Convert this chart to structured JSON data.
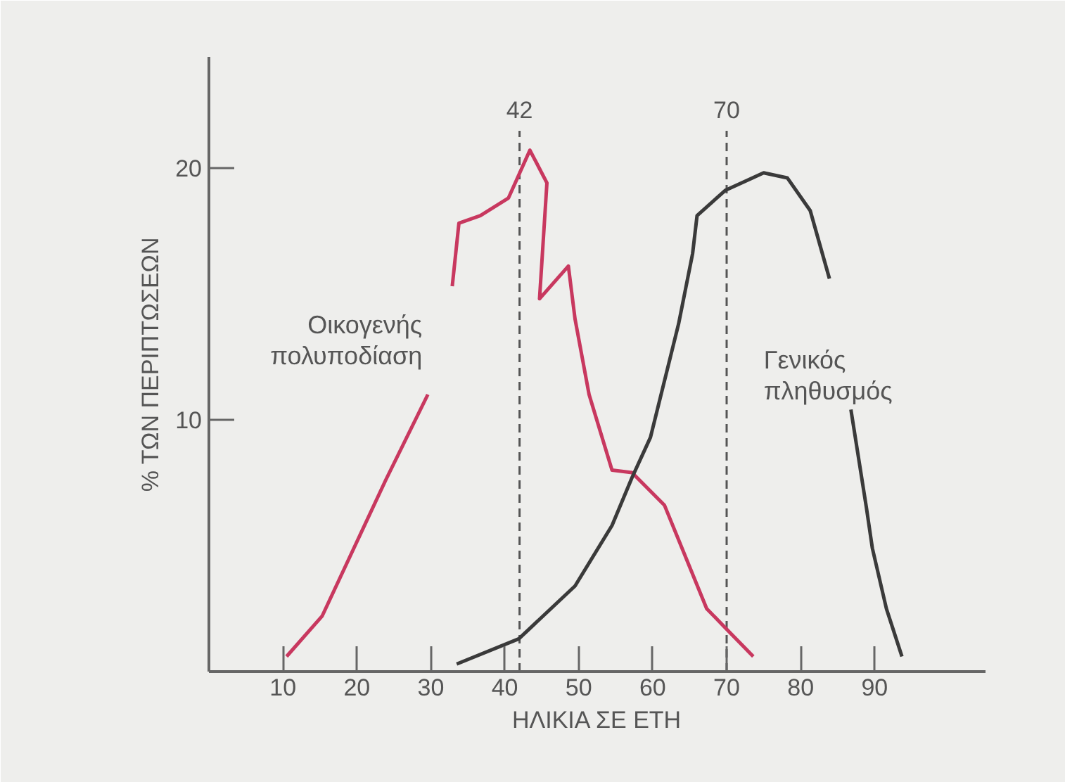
{
  "chart_data": {
    "type": "line",
    "xlabel": "ΗΛΙΚΙΑ ΣΕ ΕΤΗ",
    "ylabel": "% ΤΩΝ ΠΕΡΙΠΤΩΣΕΩΝ",
    "xlim": [
      0,
      105
    ],
    "ylim": [
      0,
      24.4
    ],
    "xticks": [
      10,
      20,
      30,
      40,
      50,
      60,
      70,
      80,
      90
    ],
    "yticks": [
      10,
      20
    ],
    "grid": false,
    "marker": "none",
    "line_style": "solid",
    "ref_lines": [
      {
        "axis": "x",
        "value": 42,
        "label": "42",
        "color": "#555555",
        "line_style": "dashed"
      },
      {
        "axis": "x",
        "value": 70,
        "label": "70",
        "color": "#555555",
        "line_style": "dashed"
      }
    ],
    "series": [
      {
        "name": "Οικογενής\nπολυποδίαση",
        "color": "#c8385f",
        "x": [
          10.5,
          15.3,
          23.9,
          29.6,
          31,
          32.9,
          33.8,
          36.7,
          40.5,
          43.4,
          45.7,
          44.7,
          48.6,
          49.5,
          51.4,
          54.5,
          57.2,
          61.6,
          67.3,
          70.6,
          73.6
        ],
        "values": [
          0.6,
          2.2,
          7.6,
          11,
          null,
          15.3,
          17.8,
          18.1,
          18.8,
          20.7,
          19.4,
          14.8,
          16.1,
          14,
          11,
          8,
          7.9,
          6.6,
          2.5,
          1.5,
          0.6
        ]
      },
      {
        "name": "Γενικός\nπληθυσμός",
        "color": "#3a3a3a",
        "x": [
          33.5,
          41.9,
          49.5,
          54.5,
          57.2,
          59.7,
          63.5,
          65.4,
          66,
          69.8,
          75,
          78.2,
          81.3,
          83.9,
          85.5,
          86.8,
          88.9,
          89.7,
          91.6,
          93.7
        ],
        "values": [
          0.3,
          1.3,
          3.4,
          5.8,
          7.7,
          9.3,
          13.8,
          16.6,
          18.1,
          19.1,
          19.8,
          19.6,
          18.3,
          15.6,
          null,
          10.4,
          6.5,
          4.9,
          2.5,
          0.6
        ]
      }
    ]
  }
}
